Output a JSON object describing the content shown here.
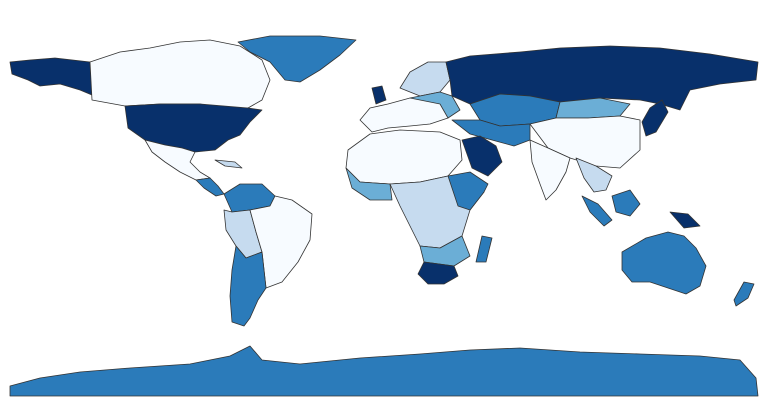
{
  "map": {
    "colors": [
      "#f7fbff",
      "#c6dbef",
      "#6baed6",
      "#2b7bba",
      "#08306b"
    ]
  }
}
